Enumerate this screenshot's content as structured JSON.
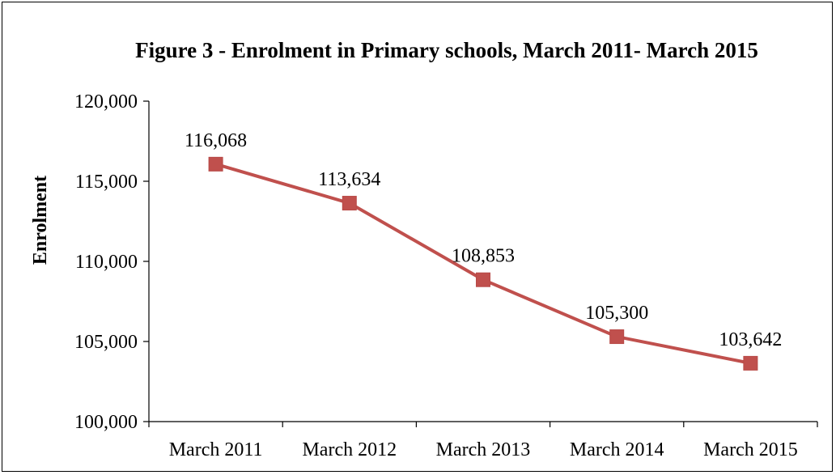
{
  "chart_data": {
    "type": "line",
    "title": "Figure 3 - Enrolment in Primary schools, March 2011- March 2015",
    "xlabel": "",
    "ylabel": "Enrolment",
    "categories": [
      "March 2011",
      "March 2012",
      "March 2013",
      "March 2014",
      "March 2015"
    ],
    "series": [
      {
        "values": [
          116068,
          113634,
          108853,
          105300,
          103642
        ],
        "labels": [
          "116,068",
          "113,634",
          "108,853",
          "105,300",
          "103,642"
        ],
        "color": "#c0504d"
      }
    ],
    "ylim": [
      100000,
      120000
    ],
    "yticks": [
      100000,
      105000,
      110000,
      115000,
      120000
    ],
    "ytick_labels": [
      "100,000",
      "105,000",
      "110,000",
      "115,000",
      "120,000"
    ],
    "grid": false,
    "legend": "none"
  }
}
